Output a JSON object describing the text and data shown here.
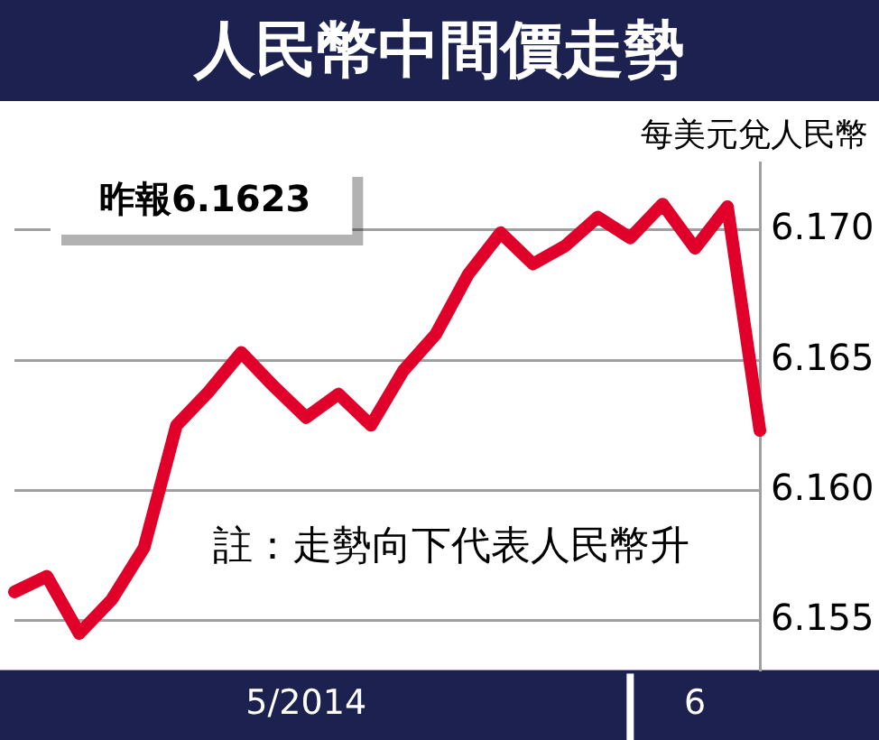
{
  "chart_data": {
    "type": "line",
    "title": "人民幣中間價走勢",
    "ylabel": "每美元兌人民幣",
    "annotations": [
      "昨報6.1623",
      "註：走勢向下代表人民幣升"
    ],
    "categories": [
      null,
      null,
      null,
      null,
      null,
      null,
      null,
      null,
      null,
      "5/2014",
      null,
      null,
      null,
      null,
      null,
      null,
      null,
      null,
      null,
      null,
      null,
      "6",
      null,
      null
    ],
    "series": [
      {
        "color": "#e0002a",
        "values": [
          6.1561,
          6.1567,
          6.1545,
          6.1558,
          6.1578,
          6.1625,
          6.1638,
          6.1653,
          6.164,
          6.1628,
          6.1637,
          6.1625,
          6.1646,
          6.166,
          6.1683,
          6.1699,
          6.1687,
          6.1694,
          6.1705,
          6.1697,
          6.171,
          6.1693,
          6.1709,
          6.1623
        ]
      }
    ],
    "ylim": [
      6.1531,
      6.1726
    ],
    "yticks": [
      {
        "value": 6.155,
        "label": "6.155"
      },
      {
        "value": 6.16,
        "label": "6.160"
      },
      {
        "value": 6.165,
        "label": "6.165"
      },
      {
        "value": 6.17,
        "label": "6.170"
      }
    ],
    "grid": "y",
    "legend": false,
    "marker": "none",
    "line_style": "solid"
  }
}
